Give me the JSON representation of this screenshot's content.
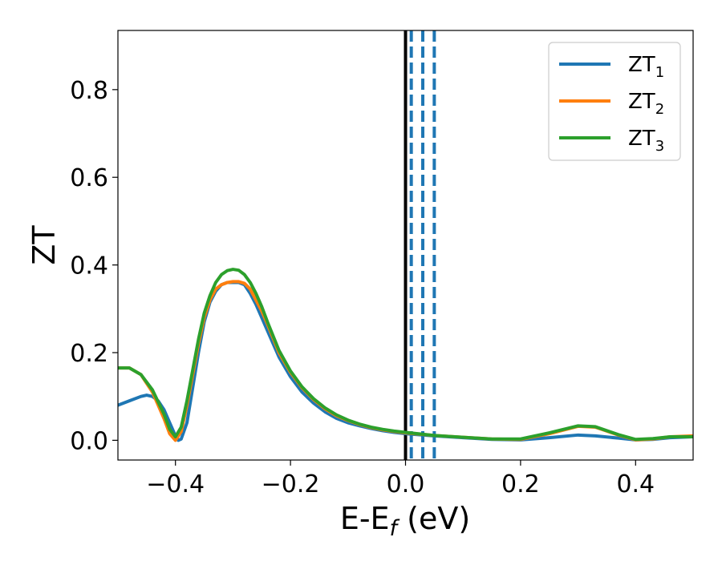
{
  "chart_data": {
    "type": "line",
    "xlabel": {
      "main": "E-E",
      "sub": "f",
      "suffix": " (eV)"
    },
    "ylabel": "ZT",
    "xlim": [
      -0.5,
      0.5
    ],
    "ylim": [
      -0.045,
      0.935
    ],
    "x_ticks": [
      -0.4,
      -0.2,
      0.0,
      0.2,
      0.4
    ],
    "x_tick_labels": [
      "−0.4",
      "−0.2",
      "0.0",
      "0.2",
      "0.4"
    ],
    "y_ticks": [
      0.0,
      0.2,
      0.4,
      0.6,
      0.8
    ],
    "y_tick_labels": [
      "0.0",
      "0.2",
      "0.4",
      "0.6",
      "0.8"
    ],
    "legend_position": "top-right",
    "vertical_lines": [
      {
        "x": 0.0,
        "color": "#000000",
        "style": "solid"
      },
      {
        "x": 0.01,
        "color": "#1f77b4",
        "style": "dashed"
      },
      {
        "x": 0.03,
        "color": "#1f77b4",
        "style": "dashed"
      },
      {
        "x": 0.05,
        "color": "#1f77b4",
        "style": "dashed"
      }
    ],
    "series": [
      {
        "name": "ZT",
        "sub": "1",
        "color": "#1f77b4",
        "points": [
          [
            -0.5,
            0.08
          ],
          [
            -0.48,
            0.09
          ],
          [
            -0.46,
            0.1
          ],
          [
            -0.45,
            0.103
          ],
          [
            -0.44,
            0.1
          ],
          [
            -0.43,
            0.09
          ],
          [
            -0.42,
            0.07
          ],
          [
            -0.41,
            0.04
          ],
          [
            -0.4,
            0.01
          ],
          [
            -0.395,
            0.0
          ],
          [
            -0.39,
            0.003
          ],
          [
            -0.38,
            0.04
          ],
          [
            -0.37,
            0.12
          ],
          [
            -0.36,
            0.2
          ],
          [
            -0.35,
            0.27
          ],
          [
            -0.34,
            0.315
          ],
          [
            -0.33,
            0.34
          ],
          [
            -0.32,
            0.355
          ],
          [
            -0.31,
            0.36
          ],
          [
            -0.3,
            0.36
          ],
          [
            -0.29,
            0.36
          ],
          [
            -0.28,
            0.355
          ],
          [
            -0.27,
            0.335
          ],
          [
            -0.26,
            0.31
          ],
          [
            -0.25,
            0.28
          ],
          [
            -0.24,
            0.25
          ],
          [
            -0.22,
            0.19
          ],
          [
            -0.2,
            0.145
          ],
          [
            -0.18,
            0.11
          ],
          [
            -0.16,
            0.085
          ],
          [
            -0.14,
            0.065
          ],
          [
            -0.12,
            0.05
          ],
          [
            -0.1,
            0.04
          ],
          [
            -0.08,
            0.033
          ],
          [
            -0.06,
            0.027
          ],
          [
            -0.04,
            0.022
          ],
          [
            -0.02,
            0.018
          ],
          [
            0.0,
            0.015
          ],
          [
            0.05,
            0.01
          ],
          [
            0.1,
            0.006
          ],
          [
            0.15,
            0.002
          ],
          [
            0.2,
            0.001
          ],
          [
            0.25,
            0.006
          ],
          [
            0.3,
            0.012
          ],
          [
            0.33,
            0.01
          ],
          [
            0.37,
            0.005
          ],
          [
            0.4,
            0.001
          ],
          [
            0.43,
            0.002
          ],
          [
            0.46,
            0.006
          ],
          [
            0.5,
            0.008
          ]
        ]
      },
      {
        "name": "ZT",
        "sub": "2",
        "color": "#ff7f0e",
        "points": [
          [
            -0.5,
            0.165
          ],
          [
            -0.48,
            0.165
          ],
          [
            -0.46,
            0.15
          ],
          [
            -0.44,
            0.11
          ],
          [
            -0.42,
            0.05
          ],
          [
            -0.41,
            0.015
          ],
          [
            -0.4,
            0.0
          ],
          [
            -0.39,
            0.02
          ],
          [
            -0.38,
            0.08
          ],
          [
            -0.37,
            0.15
          ],
          [
            -0.36,
            0.22
          ],
          [
            -0.35,
            0.28
          ],
          [
            -0.34,
            0.32
          ],
          [
            -0.33,
            0.345
          ],
          [
            -0.32,
            0.355
          ],
          [
            -0.31,
            0.36
          ],
          [
            -0.3,
            0.362
          ],
          [
            -0.29,
            0.362
          ],
          [
            -0.28,
            0.358
          ],
          [
            -0.27,
            0.345
          ],
          [
            -0.26,
            0.32
          ],
          [
            -0.25,
            0.295
          ],
          [
            -0.24,
            0.265
          ],
          [
            -0.22,
            0.2
          ],
          [
            -0.2,
            0.155
          ],
          [
            -0.18,
            0.12
          ],
          [
            -0.16,
            0.093
          ],
          [
            -0.14,
            0.072
          ],
          [
            -0.12,
            0.056
          ],
          [
            -0.1,
            0.045
          ],
          [
            -0.08,
            0.036
          ],
          [
            -0.06,
            0.029
          ],
          [
            -0.04,
            0.024
          ],
          [
            -0.02,
            0.02
          ],
          [
            0.0,
            0.017
          ],
          [
            0.05,
            0.011
          ],
          [
            0.1,
            0.007
          ],
          [
            0.15,
            0.003
          ],
          [
            0.2,
            0.002
          ],
          [
            0.25,
            0.015
          ],
          [
            0.3,
            0.032
          ],
          [
            0.33,
            0.03
          ],
          [
            0.37,
            0.012
          ],
          [
            0.4,
            0.001
          ],
          [
            0.43,
            0.003
          ],
          [
            0.46,
            0.008
          ],
          [
            0.5,
            0.01
          ]
        ]
      },
      {
        "name": "ZT",
        "sub": "3",
        "color": "#2ca02c",
        "points": [
          [
            -0.5,
            0.165
          ],
          [
            -0.48,
            0.165
          ],
          [
            -0.46,
            0.15
          ],
          [
            -0.44,
            0.115
          ],
          [
            -0.42,
            0.06
          ],
          [
            -0.41,
            0.025
          ],
          [
            -0.4,
            0.008
          ],
          [
            -0.39,
            0.03
          ],
          [
            -0.38,
            0.09
          ],
          [
            -0.37,
            0.16
          ],
          [
            -0.36,
            0.23
          ],
          [
            -0.35,
            0.29
          ],
          [
            -0.34,
            0.33
          ],
          [
            -0.33,
            0.36
          ],
          [
            -0.32,
            0.378
          ],
          [
            -0.31,
            0.387
          ],
          [
            -0.3,
            0.39
          ],
          [
            -0.29,
            0.388
          ],
          [
            -0.28,
            0.378
          ],
          [
            -0.27,
            0.36
          ],
          [
            -0.26,
            0.335
          ],
          [
            -0.25,
            0.305
          ],
          [
            -0.24,
            0.27
          ],
          [
            -0.22,
            0.205
          ],
          [
            -0.2,
            0.158
          ],
          [
            -0.18,
            0.122
          ],
          [
            -0.16,
            0.095
          ],
          [
            -0.14,
            0.074
          ],
          [
            -0.12,
            0.058
          ],
          [
            -0.1,
            0.046
          ],
          [
            -0.08,
            0.037
          ],
          [
            -0.06,
            0.03
          ],
          [
            -0.04,
            0.025
          ],
          [
            -0.02,
            0.021
          ],
          [
            0.0,
            0.018
          ],
          [
            0.05,
            0.011
          ],
          [
            0.1,
            0.007
          ],
          [
            0.15,
            0.003
          ],
          [
            0.2,
            0.003
          ],
          [
            0.25,
            0.017
          ],
          [
            0.3,
            0.033
          ],
          [
            0.33,
            0.031
          ],
          [
            0.37,
            0.013
          ],
          [
            0.4,
            0.002
          ],
          [
            0.43,
            0.004
          ],
          [
            0.46,
            0.008
          ],
          [
            0.5,
            0.008
          ]
        ]
      }
    ]
  }
}
